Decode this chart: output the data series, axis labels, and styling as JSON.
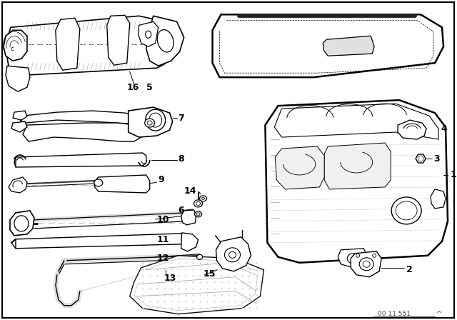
{
  "bg_color": "#ffffff",
  "line_color": "#000000",
  "label_color": "#000000",
  "border_color": "#000000",
  "figsize": [
    6.4,
    4.48
  ],
  "dpi": 100,
  "watermark": "00 11 551"
}
